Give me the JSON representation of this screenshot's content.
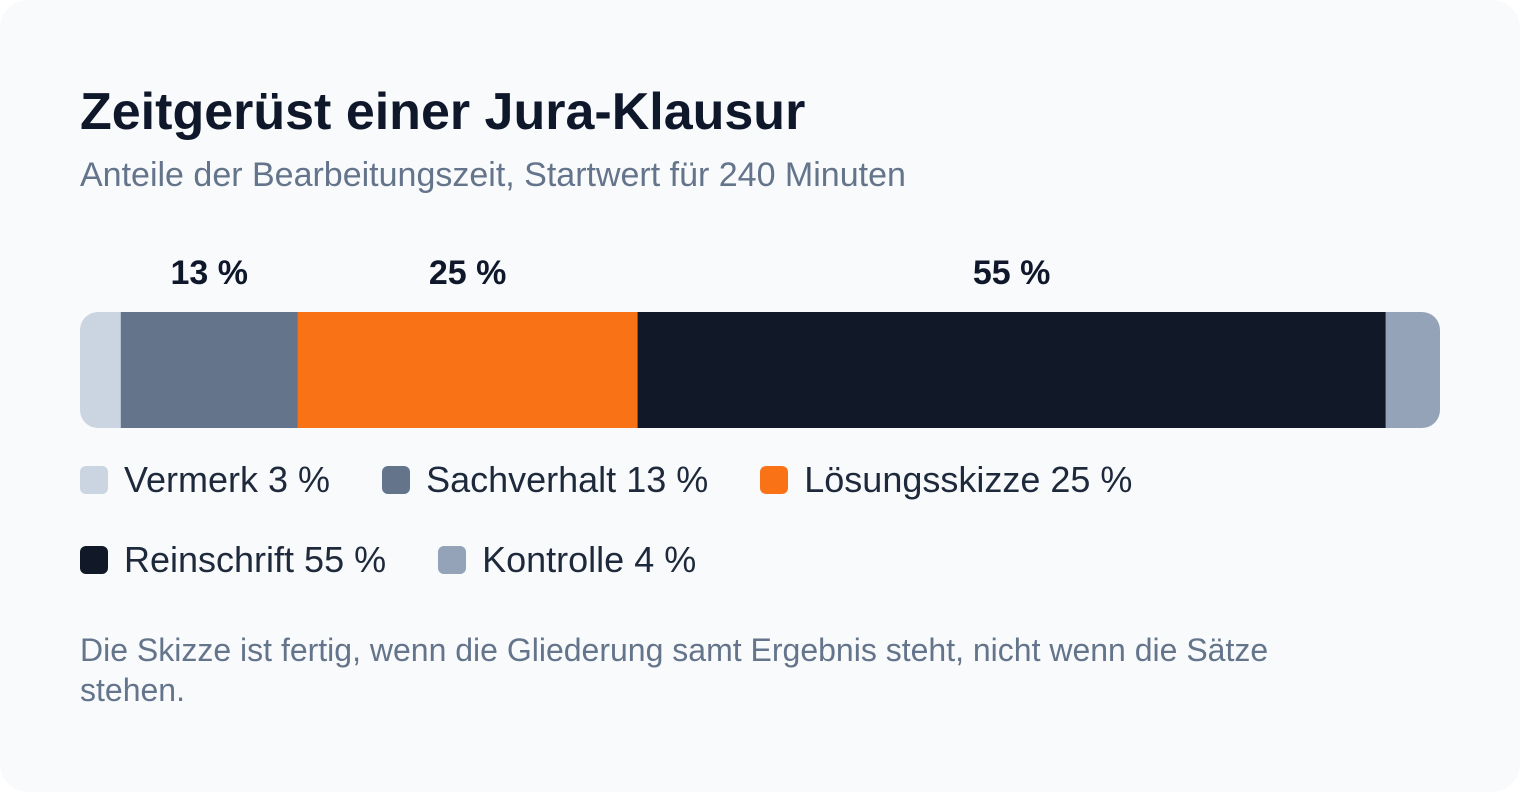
{
  "title": "Zeitgerüst einer Jura-Klausur",
  "subtitle": "Anteile der Bearbeitungszeit, Startwert für 240 Minuten",
  "note": "Die Skizze ist fertig, wenn die Gliederung samt Ergebnis steht, nicht wenn die Sätze stehen.",
  "colors": {
    "vermerk": "#cbd5e1",
    "sachverhalt": "#64748b",
    "loesungsskizze": "#f97316",
    "reinschrift": "#111827",
    "kontrolle": "#94a3b8",
    "label_text": "#0f172a"
  },
  "chart_data": {
    "type": "bar",
    "orientation": "horizontal-stacked",
    "categories": [
      "Vermerk",
      "Sachverhalt",
      "Lösungsskizze",
      "Reinschrift",
      "Kontrolle"
    ],
    "values": [
      3,
      13,
      25,
      55,
      4
    ],
    "unit": "%",
    "data_labels": [
      "",
      "13 %",
      "25 %",
      "55 %",
      ""
    ],
    "title": "Zeitgerüst einer Jura-Klausur",
    "subtitle": "Anteile der Bearbeitungszeit, Startwert für 240 Minuten",
    "legend_position": "bottom",
    "grid": false
  },
  "legend": {
    "rows": [
      [
        {
          "key": "vermerk",
          "label": "Vermerk 3 %"
        },
        {
          "key": "sachverhalt",
          "label": "Sachverhalt 13 %"
        },
        {
          "key": "loesungsskizze",
          "label": "Lösungsskizze 25 %"
        }
      ],
      [
        {
          "key": "reinschrift",
          "label": "Reinschrift 55 %"
        },
        {
          "key": "kontrolle",
          "label": "Kontrolle 4 %"
        }
      ]
    ]
  }
}
